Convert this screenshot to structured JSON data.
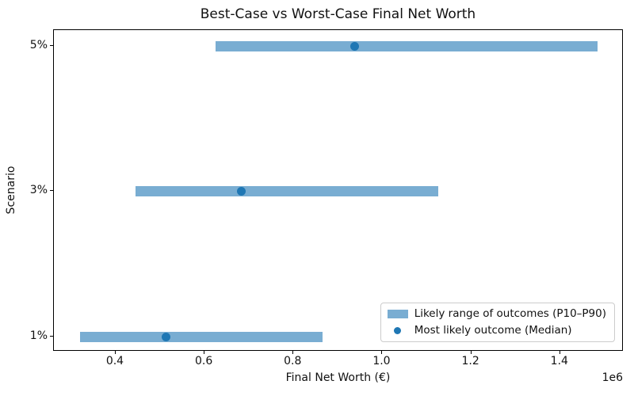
{
  "chart_data": {
    "type": "bar",
    "subtype": "horizontal-range-bar-with-median-dot",
    "title": "Best-Case vs Worst-Case Final Net Worth",
    "xlabel": "Final Net Worth (€)",
    "ylabel": "Scenario",
    "offset_text": "1e6",
    "grid": false,
    "legend_position": "lower right",
    "categories": [
      "5%",
      "3%",
      "1%"
    ],
    "series": [
      {
        "name": "Likely range of outcomes (P10–P90)",
        "marker": "bar",
        "p10": [
          625000,
          445000,
          320000
        ],
        "p90": [
          1484000,
          1126000,
          866000
        ]
      },
      {
        "name": "Most likely outcome (Median)",
        "marker": "dot",
        "values": [
          938000,
          682000,
          513000
        ]
      }
    ],
    "xlim": [
      261000,
      1543000
    ],
    "x_ticks": [
      400000,
      600000,
      800000,
      1000000,
      1200000,
      1400000
    ],
    "x_tick_labels": [
      "0.4",
      "0.6",
      "0.8",
      "1.0",
      "1.2",
      "1.4"
    ],
    "colors": {
      "range_bar": "rgba(31,119,180,0.6)",
      "range_bar_flat": "#79add2",
      "median_dot": "#1f77b4",
      "text": "#111111",
      "legend_border": "#cccccc"
    }
  }
}
